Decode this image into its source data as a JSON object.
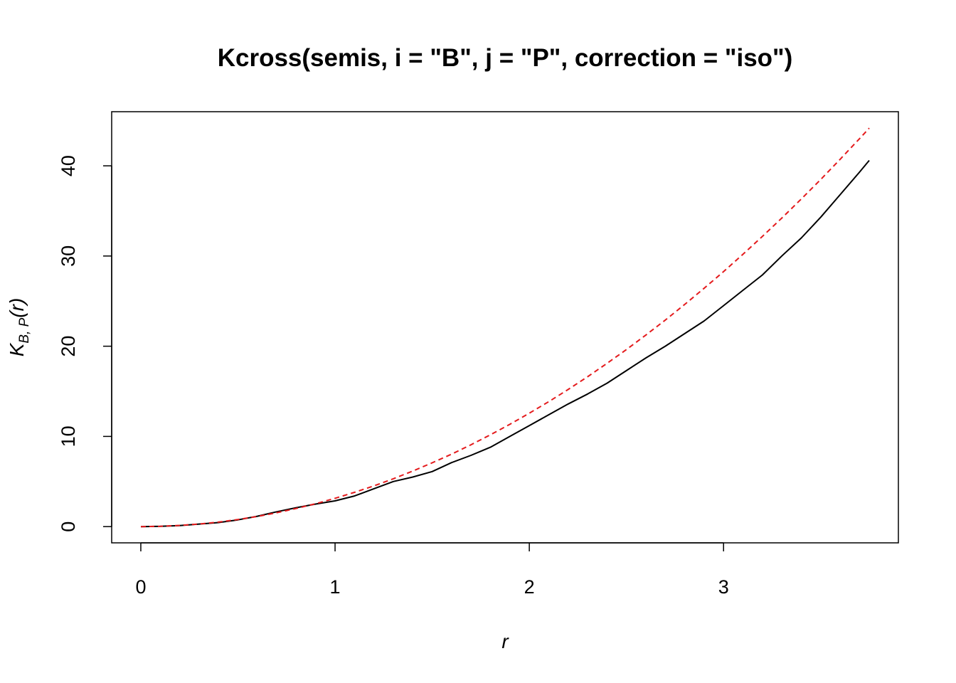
{
  "chart_data": {
    "type": "line",
    "title": "Kcross(semis, i = \"B\", j = \"P\", correction = \"iso\")",
    "xlabel": "r",
    "ylabel": {
      "base": "K",
      "subscript": "B, P",
      "arg": "(r)"
    },
    "xlim": [
      -0.15,
      3.9
    ],
    "ylim": [
      -1.8,
      46
    ],
    "xticks": [
      0,
      1,
      2,
      3
    ],
    "yticks": [
      0,
      10,
      20,
      30,
      40
    ],
    "grid": false,
    "legend": "none",
    "series": [
      {
        "style": "solid",
        "color": "#000000",
        "x": [
          0,
          0.1,
          0.2,
          0.3,
          0.4,
          0.5,
          0.6,
          0.7,
          0.8,
          0.9,
          1.0,
          1.1,
          1.2,
          1.3,
          1.4,
          1.5,
          1.6,
          1.7,
          1.8,
          1.9,
          2.0,
          2.1,
          2.2,
          2.3,
          2.4,
          2.5,
          2.6,
          2.7,
          2.8,
          2.9,
          3.0,
          3.1,
          3.2,
          3.3,
          3.4,
          3.5,
          3.6,
          3.7,
          3.75
        ],
        "y": [
          0,
          0.03,
          0.12,
          0.28,
          0.45,
          0.75,
          1.15,
          1.65,
          2.1,
          2.5,
          2.85,
          3.4,
          4.2,
          5.0,
          5.5,
          6.1,
          7.1,
          7.9,
          8.8,
          10.0,
          11.2,
          12.4,
          13.6,
          14.7,
          15.9,
          17.3,
          18.7,
          20.0,
          21.4,
          22.8,
          24.5,
          26.2,
          27.9,
          30.0,
          32.0,
          34.3,
          36.8,
          39.3,
          40.6
        ]
      },
      {
        "style": "dashed",
        "color": "#e41a1c",
        "x": [
          0,
          0.1,
          0.2,
          0.3,
          0.4,
          0.5,
          0.6,
          0.7,
          0.8,
          0.9,
          1.0,
          1.1,
          1.2,
          1.3,
          1.4,
          1.5,
          1.6,
          1.7,
          1.8,
          1.9,
          2.0,
          2.1,
          2.2,
          2.3,
          2.4,
          2.5,
          2.6,
          2.7,
          2.8,
          2.9,
          3.0,
          3.1,
          3.2,
          3.3,
          3.4,
          3.5,
          3.6,
          3.7,
          3.75
        ],
        "y": [
          0,
          0.03,
          0.13,
          0.28,
          0.5,
          0.79,
          1.13,
          1.54,
          2.01,
          2.54,
          3.14,
          3.8,
          4.52,
          5.31,
          6.16,
          7.07,
          8.04,
          9.08,
          10.18,
          11.34,
          12.57,
          13.85,
          15.21,
          16.62,
          18.1,
          19.63,
          21.24,
          22.9,
          24.63,
          26.42,
          28.27,
          30.19,
          32.17,
          34.21,
          36.32,
          38.48,
          40.72,
          43.01,
          44.18
        ]
      }
    ]
  }
}
